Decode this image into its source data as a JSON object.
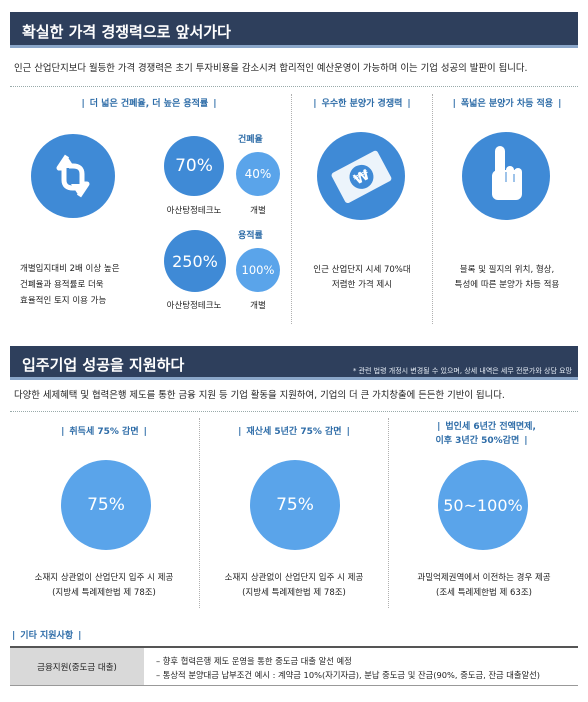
{
  "section1": {
    "title": "확실한 가격 경쟁력으로 앞서가다",
    "intro": "인근 산업단지보다 월등한 가격 경쟁력은 초기 투자비용을 감소시켜 합리적인 예산운영이 가능하며 이는 기업 성공의 발판이 됩니다."
  },
  "panel_ratio": {
    "title": "더 넓은 건폐율, 더 높은 용적률",
    "coverage_label": "건폐율",
    "coverage_main": "70%",
    "coverage_compare": "40%",
    "floor_label": "용적률",
    "floor_main": "250%",
    "floor_compare": "100%",
    "name_main": "아산탕정테크노",
    "name_compare": "개별",
    "desc": [
      "개별입지대비 2배 이상 높은",
      "건폐율과 용적률로 더욱",
      "효율적인 토지 이용 가능"
    ]
  },
  "panel_price": {
    "title": "우수한 분양가 경쟁력",
    "desc": [
      "인근 산업단지 시세 70%대",
      "저렴한 가격 제시"
    ]
  },
  "panel_diff": {
    "title": "폭넓은 분양가 차등 적용",
    "desc": [
      "블록 및 필지의 위치, 형상,",
      "특성에 따른 분양가 차등 적용"
    ]
  },
  "section2": {
    "title": "입주기업 성공을 지원하다",
    "note": "* 관련 법령 개정시 변경될 수 있으며, 상세 내역은 세무 전문가와 상담 요망",
    "intro": "다양한 세제혜택 및 협력은행 제도를 통한 금융 지원 등 기업 활동을 지원하여, 기업의 더 큰 가치창출에 든든한 기반이 됩니다."
  },
  "benefits": [
    {
      "title": "취득세 75% 감면",
      "value": "75%",
      "desc1": "소재지 상관없이 산업단지 입주 시 제공",
      "desc2": "(지방세 특례제한법 제 78조)"
    },
    {
      "title": "재산세 5년간 75% 감면",
      "value": "75%",
      "desc1": "소재지 상관없이 산업단지 입주 시 제공",
      "desc2": "(지방세 특례제한법 제 78조)"
    },
    {
      "title1": "법인세 6년간 전액면제,",
      "title2": "이후 3년간 50%감면",
      "value": "50~100%",
      "desc1": "과밀억제권역에서 이전하는 경우 제공",
      "desc2": "(조세 특례제한법 제 63조)"
    }
  ],
  "other": {
    "title": "기타 지원사항",
    "row_header": "금융지원(중도금 대출)",
    "line1": "– 향후 협력은행 제도 운영을 통한 중도금 대출 알선 예정",
    "line2": "– 통상적 분양대금 납부조건 예시 : 계약금 10%(자기자금), 분납 중도금 및 잔금(90%, 중도금, 잔금 대출알선)"
  },
  "colors": {
    "band": "#2e3f5c",
    "accent": "#2f6da8",
    "circle_big": "#3f8ad6",
    "circle_light": "#5aa4ea"
  },
  "icons": [
    "exchange-arrows-icon",
    "won-card-icon",
    "pointing-hand-icon"
  ]
}
